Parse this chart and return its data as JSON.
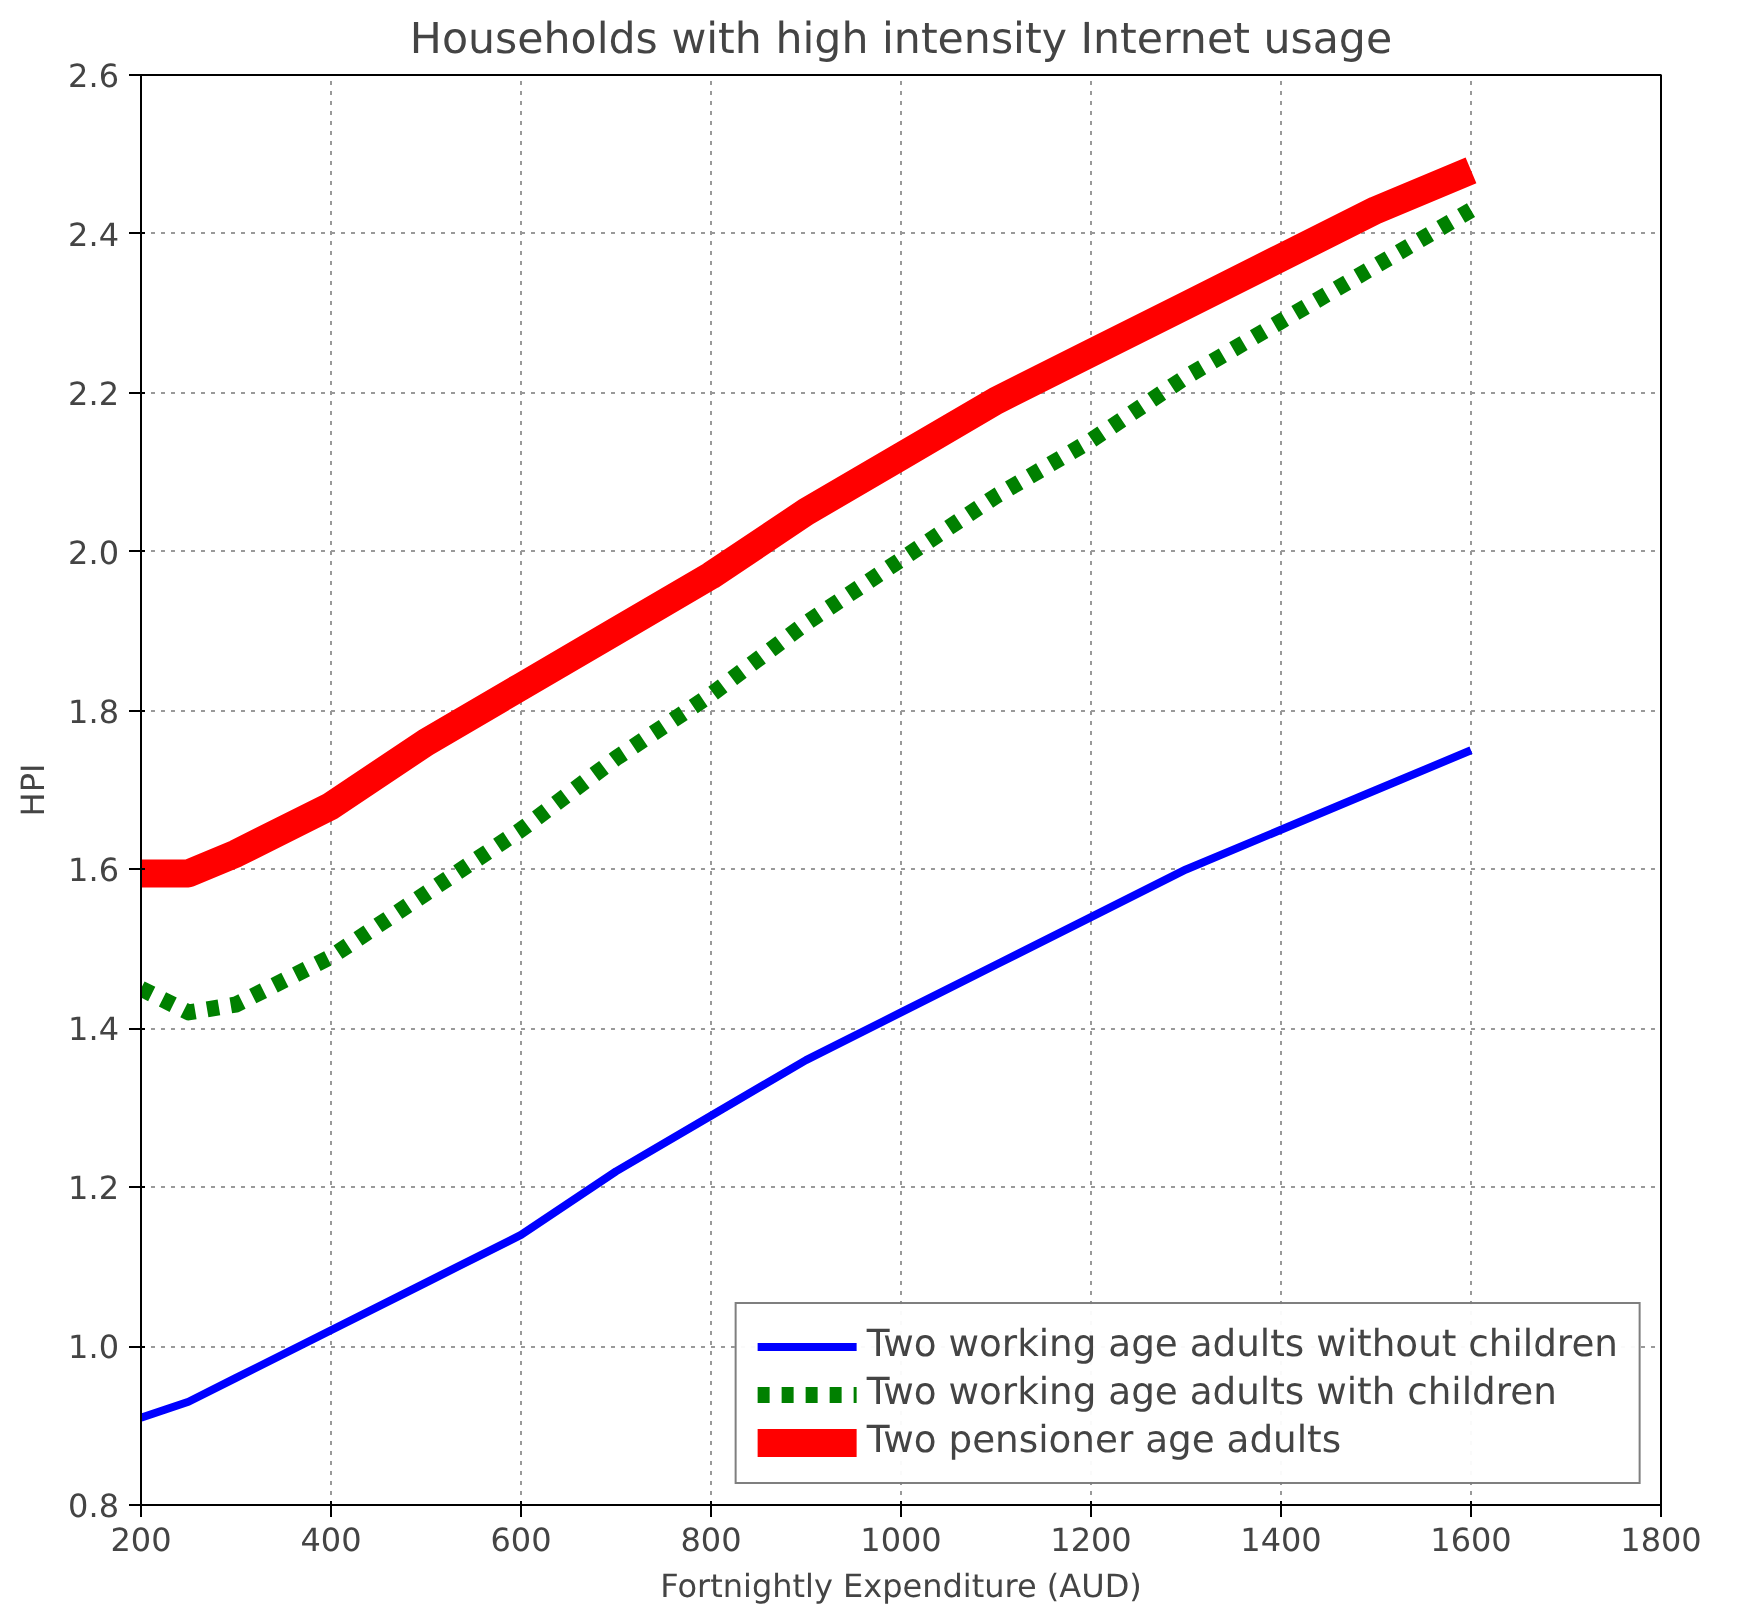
{
  "chart_data": {
    "type": "line",
    "title": "Households with high intensity Internet usage",
    "xlabel": "Fortnightly Expenditure (AUD)",
    "ylabel": "HPI",
    "xlim": [
      200,
      1800
    ],
    "xticks": [
      200,
      400,
      600,
      800,
      1000,
      1200,
      1400,
      1600,
      1800
    ],
    "ylim": [
      0.8,
      2.6
    ],
    "yticks": [
      {
        "value": 0.8,
        "label": "0.8"
      },
      {
        "value": 1.0,
        "label": "1.0"
      },
      {
        "value": 1.2,
        "label": "1.2"
      },
      {
        "value": 1.4,
        "label": "1.4"
      },
      {
        "value": 1.6,
        "label": "1.6"
      },
      {
        "value": 1.8,
        "label": "1.8"
      },
      {
        "value": 2.0,
        "label": "2.0"
      },
      {
        "value": 2.2,
        "label": "2.2"
      },
      {
        "value": 2.4,
        "label": "2.4"
      },
      {
        "value": 2.6,
        "label": "2.6"
      }
    ],
    "grid": true,
    "legend": "bottom right",
    "x": [
      200,
      250,
      300,
      400,
      500,
      600,
      700,
      800,
      900,
      1000,
      1100,
      1200,
      1300,
      1400,
      1500,
      1600
    ],
    "series": [
      {
        "name": "Two working age adults without children",
        "color": "#0000ff",
        "line_style": "solid",
        "values": [
          0.91,
          0.93,
          0.96,
          1.02,
          1.08,
          1.14,
          1.22,
          1.29,
          1.36,
          1.42,
          1.48,
          1.54,
          1.6,
          1.65,
          1.7,
          1.75
        ]
      },
      {
        "name": "Two working age adults with children",
        "color": "#008000",
        "line_style": "dotted",
        "values": [
          1.45,
          1.42,
          1.43,
          1.49,
          1.57,
          1.65,
          1.74,
          1.82,
          1.91,
          1.99,
          2.07,
          2.14,
          2.22,
          2.29,
          2.36,
          2.43
        ]
      },
      {
        "name": "Two pensioner age adults",
        "color": "#ff0000",
        "line_style": "solid",
        "values": [
          1.595,
          1.595,
          1.62,
          1.68,
          1.76,
          1.83,
          1.9,
          1.97,
          2.05,
          2.12,
          2.19,
          2.25,
          2.31,
          2.37,
          2.43,
          2.48
        ]
      }
    ]
  }
}
